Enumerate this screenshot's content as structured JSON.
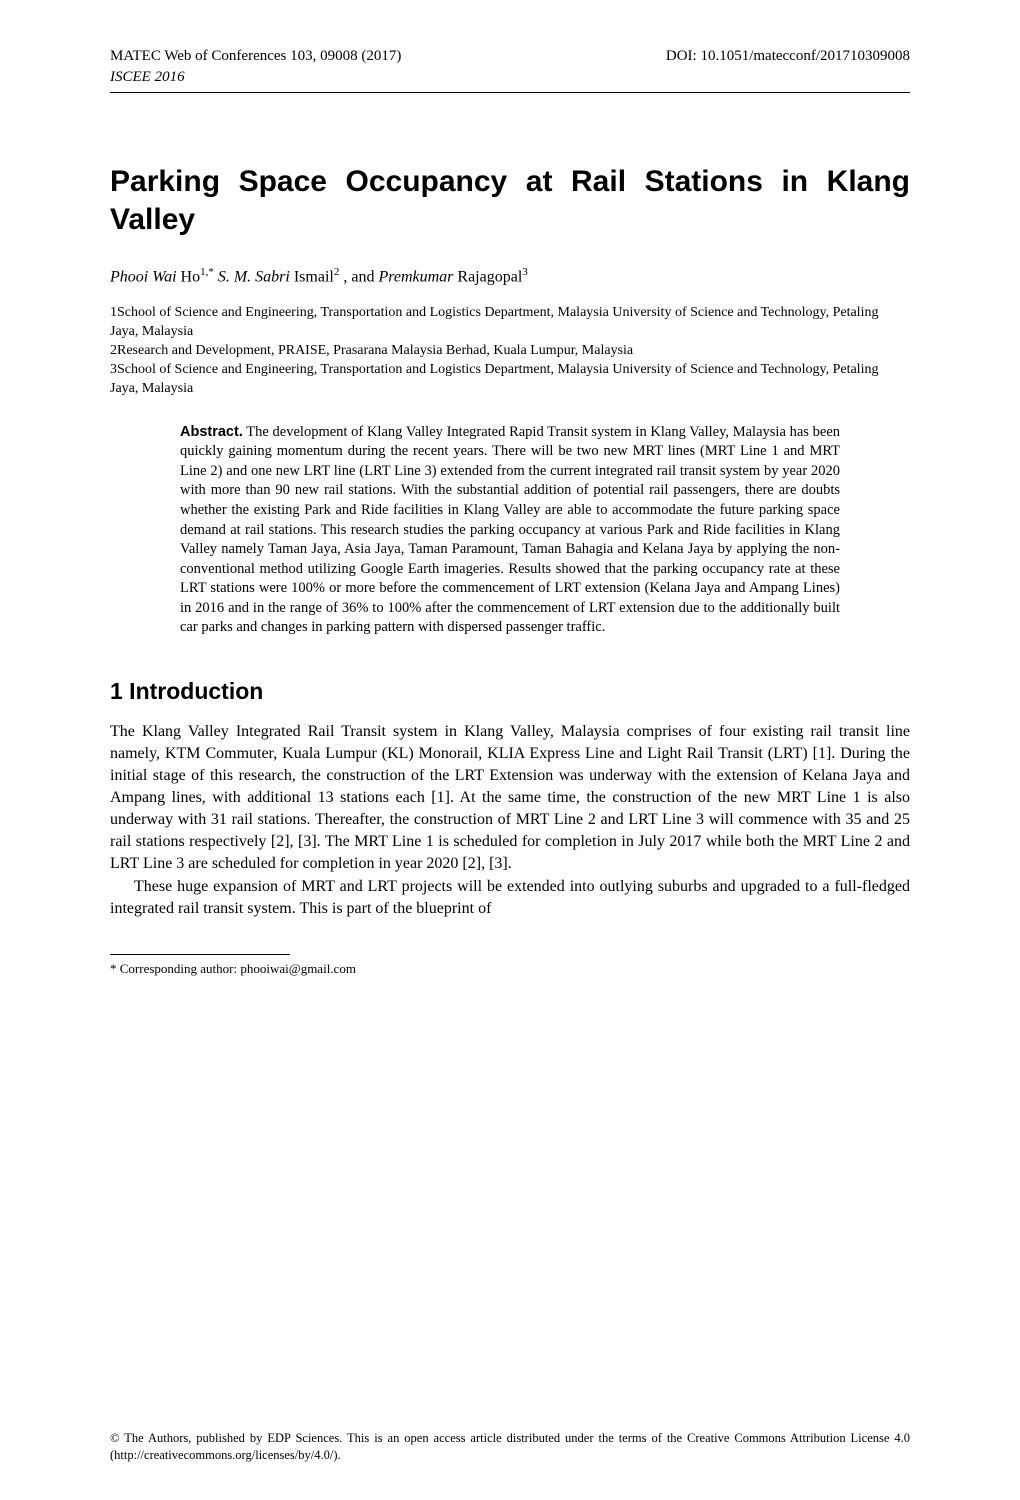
{
  "header": {
    "left": "MATEC Web of Conferences 103, 09008 (2017)",
    "right": "DOI: 10.1051/matecconf/201710309008",
    "journal": "ISCEE 2016"
  },
  "title": "Parking Space Occupancy at Rail Stations in Klang Valley",
  "authors": {
    "a1_name": "Phooi Wai",
    "a1_surname": " Ho",
    "a1_sup": "1,*",
    "a2_name": " S. M. Sabri",
    "a2_surname": " Ismail",
    "a2_sup": "2",
    "sep": " , and ",
    "a3_name": "Premkumar",
    "a3_surname": " Rajagopal",
    "a3_sup": "3"
  },
  "affiliations": {
    "l1": "1School of Science and Engineering, Transportation and Logistics Department, Malaysia University of Science and Technology, Petaling Jaya, Malaysia",
    "l2": "2Research and Development, PRAISE, Prasarana Malaysia Berhad, Kuala Lumpur, Malaysia",
    "l3": "3School of Science and Engineering, Transportation and Logistics Department, Malaysia University of Science and Technology, Petaling Jaya, Malaysia"
  },
  "abstract": {
    "head": "Abstract.",
    "body": " The development of Klang Valley Integrated Rapid Transit system in Klang Valley, Malaysia has been quickly gaining momentum during the recent years. There will be two new MRT lines (MRT Line 1 and MRT Line 2) and one new LRT line (LRT Line 3) extended from the current integrated rail transit system by year 2020 with more than 90 new rail stations. With the substantial addition of potential rail passengers, there are doubts whether the existing Park and Ride facilities in Klang Valley are able to accommodate the future parking space demand at rail stations. This research studies the parking occupancy at various Park and Ride facilities in Klang Valley namely Taman Jaya, Asia Jaya, Taman Paramount, Taman Bahagia and Kelana Jaya by applying the non-conventional method utilizing Google Earth imageries. Results showed that the parking occupancy rate at these LRT stations were 100% or more before the commencement of LRT extension (Kelana Jaya and Ampang Lines) in 2016 and in the range of 36% to 100% after the commencement of LRT extension due to the additionally built car parks and changes in parking pattern with dispersed passenger traffic."
  },
  "section1": {
    "head": "1 Introduction",
    "p1": "The Klang Valley Integrated Rail Transit system in Klang Valley, Malaysia comprises of four existing rail transit line namely, KTM Commuter, Kuala Lumpur (KL) Monorail, KLIA Express Line and Light Rail Transit (LRT) [1]. During the initial stage of this research, the construction of the LRT Extension was underway with the extension of Kelana Jaya and Ampang lines, with additional 13 stations each [1]. At the same time, the construction of the new MRT Line 1 is also underway with 31 rail stations. Thereafter, the construction of MRT Line 2 and LRT Line 3 will commence with 35 and 25 rail stations respectively [2], [3]. The MRT Line 1 is scheduled for completion in July 2017 while both the MRT Line 2 and LRT Line 3 are scheduled for completion in year 2020 [2], [3].",
    "p2": "These huge expansion of MRT and LRT projects will be extended into outlying suburbs and upgraded to a full-fledged integrated rail transit system. This is part of the blueprint of"
  },
  "footnote": "* Corresponding author: phooiwai@gmail.com",
  "license": "© The Authors, published by EDP Sciences. This is an open access article distributed under the terms of the Creative Commons Attribution License 4.0 (http://creativecommons.org/licenses/by/4.0/)."
}
